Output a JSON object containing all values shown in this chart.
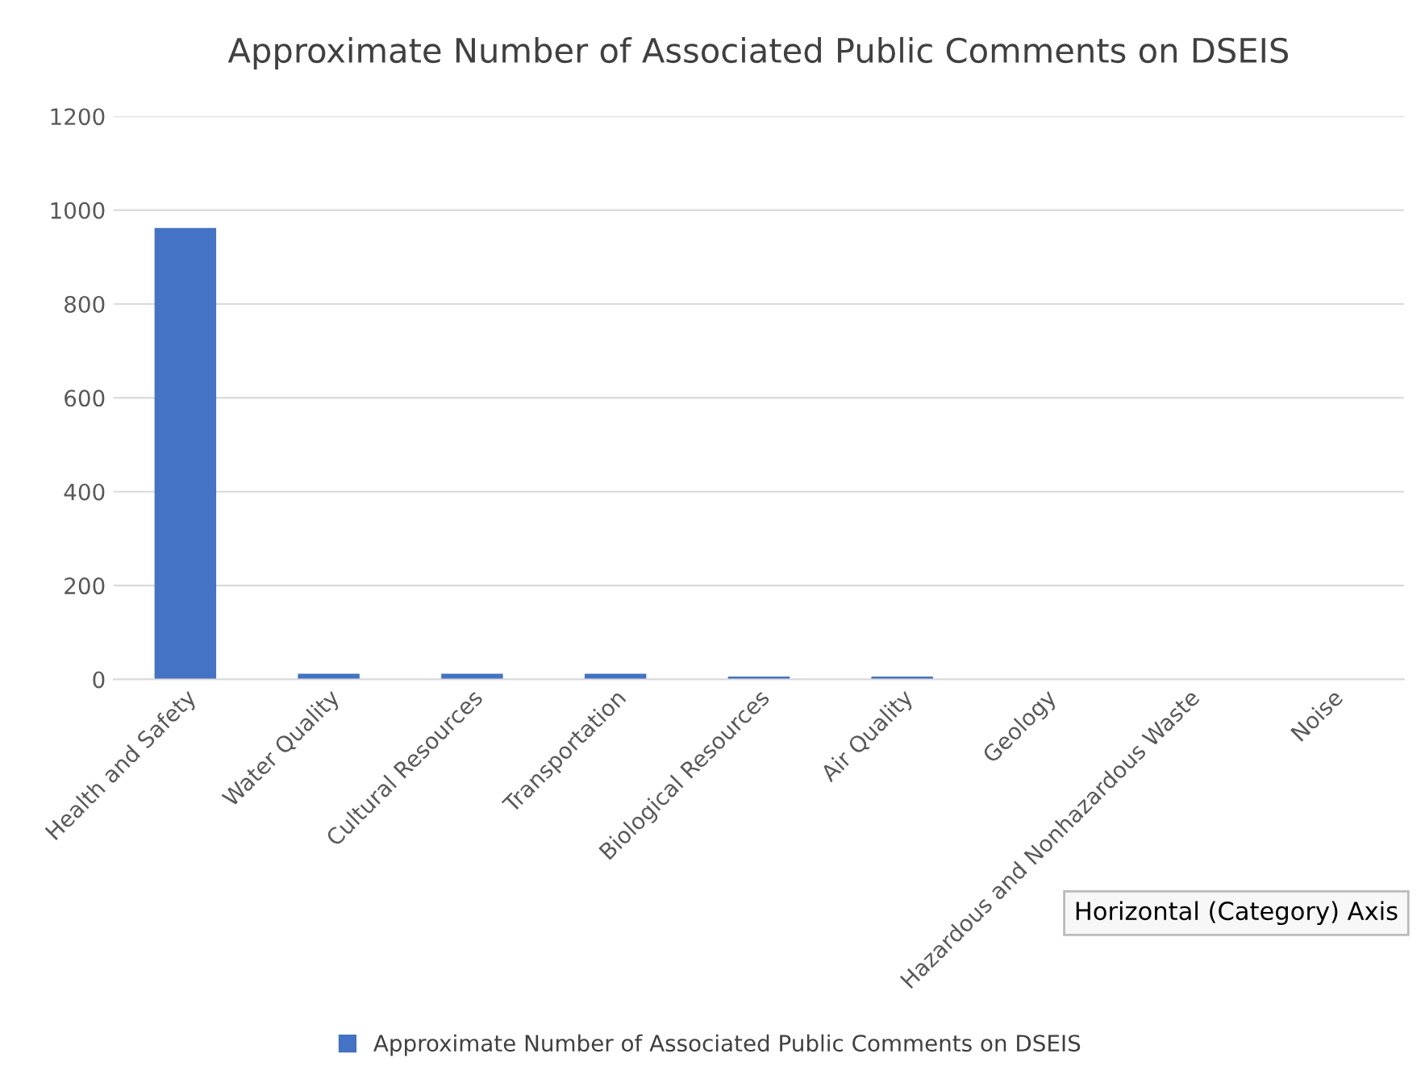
{
  "chart_data": {
    "type": "bar",
    "title": "Approximate Number of Associated Public Comments on DSEIS",
    "categories": [
      "Health and Safety",
      "Water Quality",
      "Cultural Resources",
      "Transportation",
      "Biological Resources",
      "Air Quality",
      "Geology",
      "Hazardous and Nonhazardous Waste",
      "Noise"
    ],
    "series": [
      {
        "name": "Approximate Number of Associated Public Comments on DSEIS",
        "color": "#4472c4",
        "values": [
          962,
          12,
          12,
          12,
          6,
          6,
          0,
          0,
          0
        ]
      }
    ],
    "ylim": [
      0,
      1200
    ],
    "yticks": [
      0,
      200,
      400,
      600,
      800,
      1000,
      1200
    ],
    "grid": "y",
    "legend": "bottom",
    "annotations": [
      "Horizontal (Category) Axis"
    ]
  }
}
